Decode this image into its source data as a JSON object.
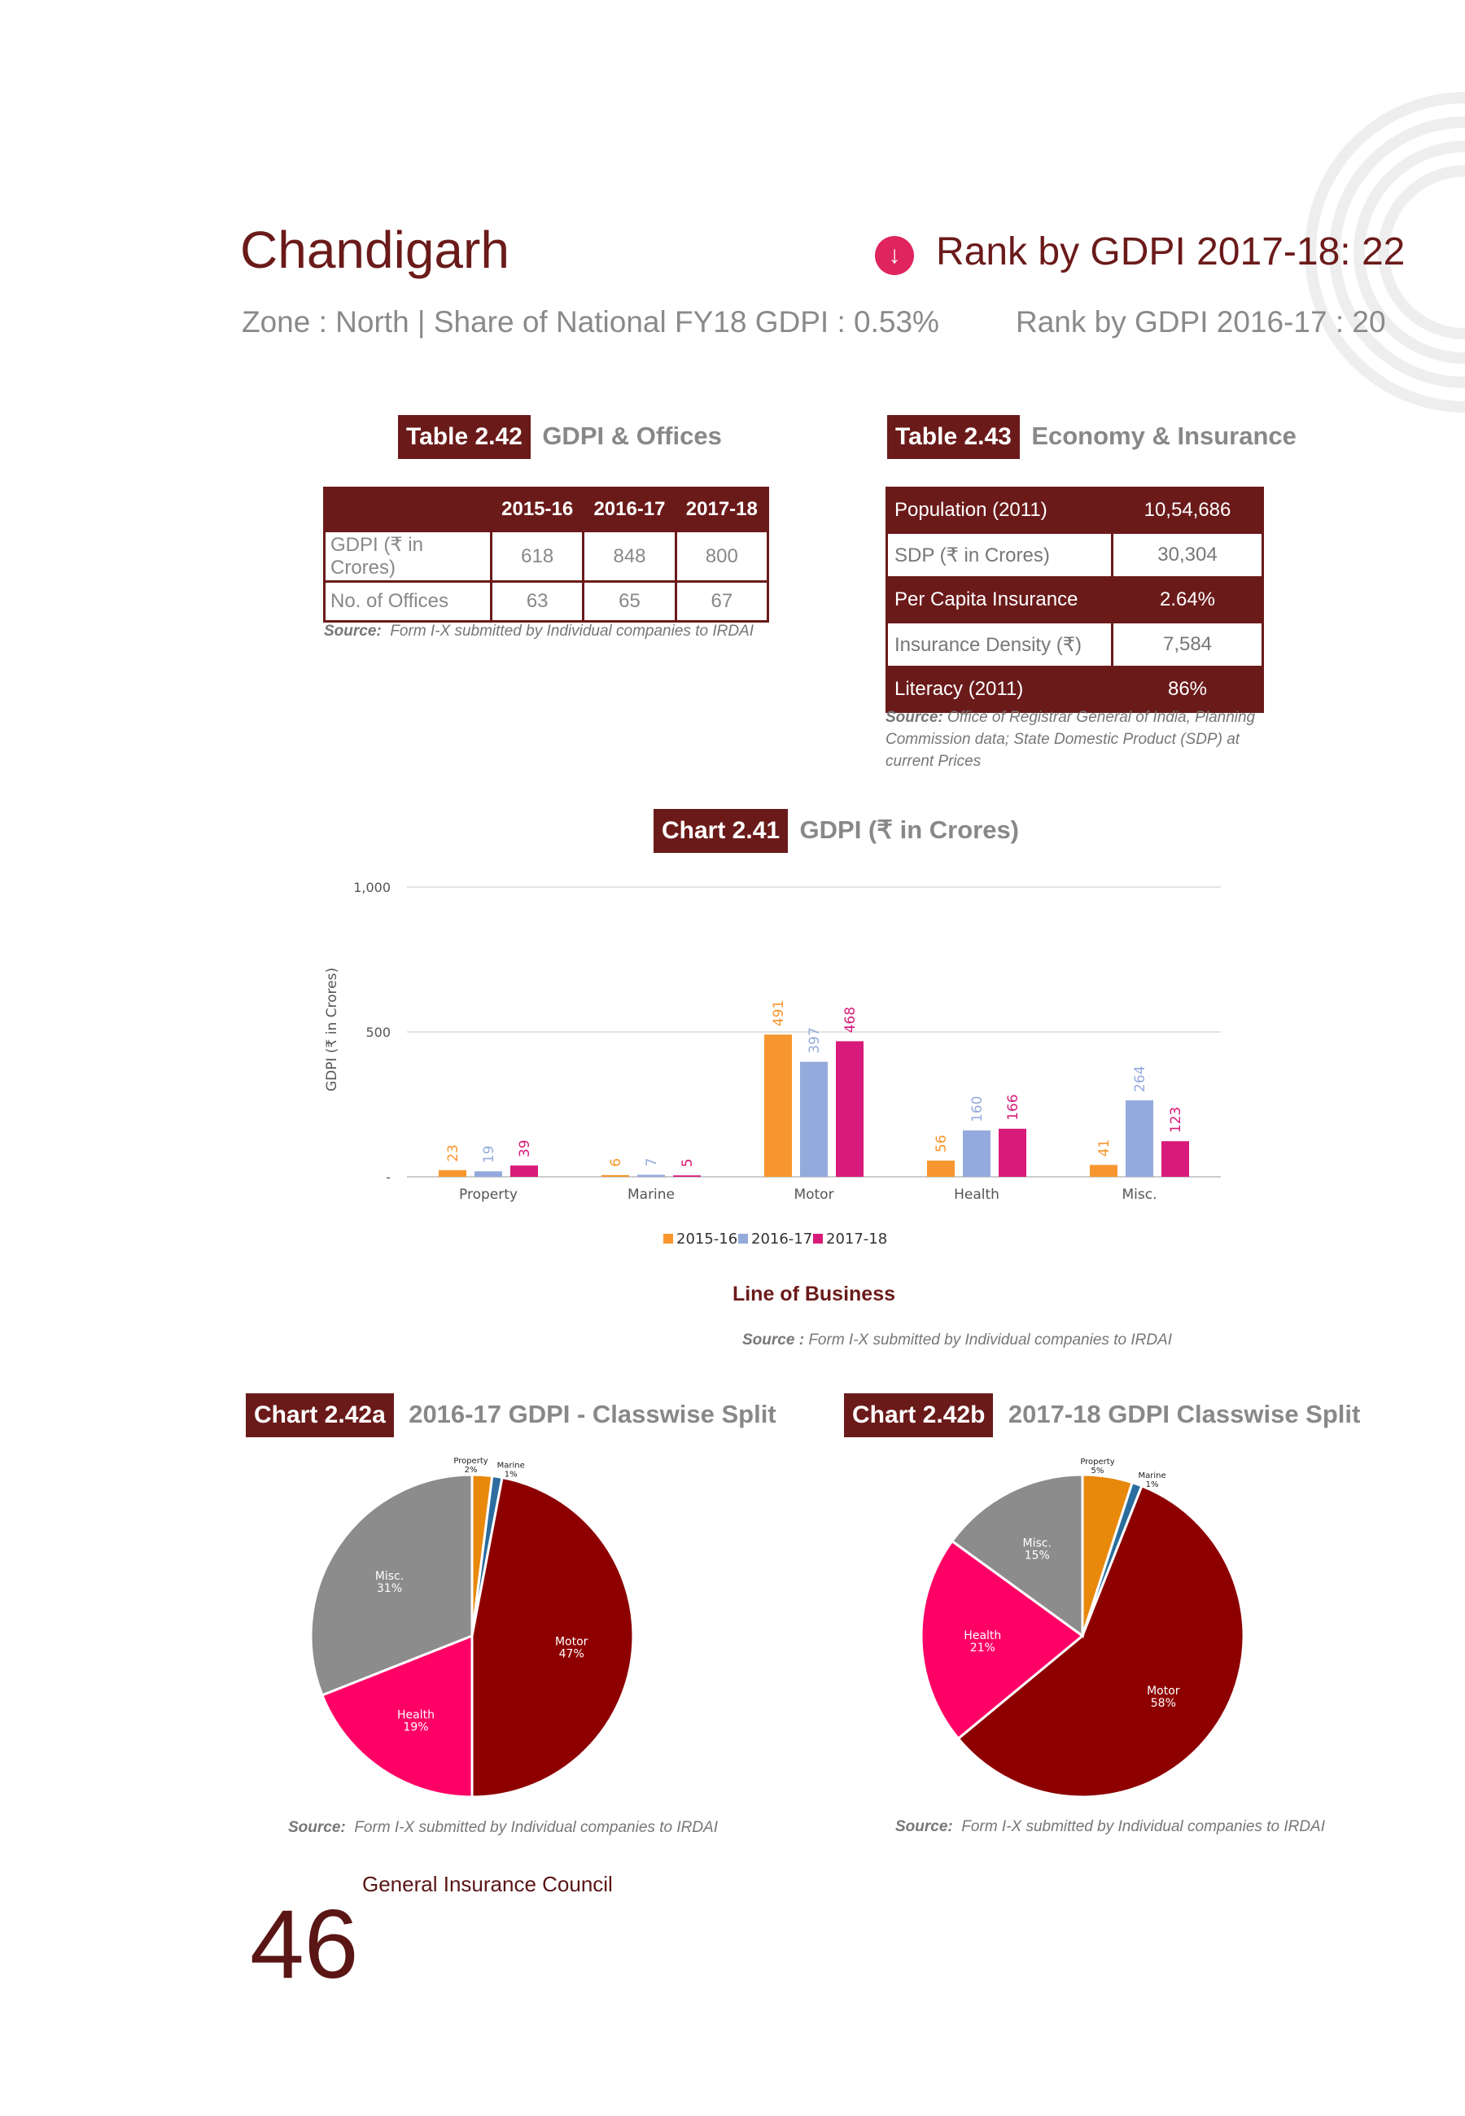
{
  "header": {
    "state": "Chandigarh",
    "subtitle": "Zone : North | Share of National FY18 GDPI : 0.53%",
    "rank_current": "Rank by GDPI 2017-18: 22",
    "rank_previous": "Rank by GDPI 2016-17 : 20"
  },
  "table_242": {
    "tag": "Table 2.42",
    "title": "GDPI & Offices",
    "headers": [
      "",
      "2015-16",
      "2016-17",
      "2017-18"
    ],
    "rows": [
      [
        "GDPI (₹ in Crores)",
        "618",
        "848",
        "800"
      ],
      [
        "No. of Offices",
        "63",
        "65",
        "67"
      ]
    ],
    "source_label": "Source:",
    "source_text": "Form I-X submitted by Individual companies to IRDAI"
  },
  "table_243": {
    "tag": "Table 2.43",
    "title": "Economy & Insurance",
    "rows": [
      [
        "Population (2011)",
        "10,54,686"
      ],
      [
        "SDP (₹ in Crores)",
        "30,304"
      ],
      [
        "Per Capita Insurance",
        "2.64%"
      ],
      [
        "Insurance Density (₹)",
        "7,584"
      ],
      [
        "Literacy (2011)",
        "86%"
      ]
    ],
    "source_label": "Source:",
    "source_line1": "Office of Registrar General of India, Planning",
    "source_line2": "Commission data; State Domestic Product (SDP) at",
    "source_line3": "current Prices"
  },
  "chart_241": {
    "tag": "Chart 2.41",
    "title": "GDPI (₹ in Crores)",
    "source_label": "Source :",
    "source_text": "Form I-X submitted by Individual companies to IRDAI"
  },
  "chart_242a": {
    "tag": "Chart 2.42a",
    "title": "2016-17 GDPI - Classwise Split",
    "source_label": "Source:",
    "source_text": "Form I-X submitted by Individual companies to IRDAI"
  },
  "chart_242b": {
    "tag": "Chart 2.42b",
    "title": "2017-18 GDPI Classwise Split",
    "source_label": "Source:",
    "source_text": "Form I-X submitted by Individual companies to IRDAI"
  },
  "footer": {
    "page_number": "46",
    "publisher": "General Insurance Council"
  },
  "colors": {
    "maroon": "#6b1a1a",
    "s2015": "#f7962e",
    "s2016": "#94aadc",
    "s2017": "#d81b7a",
    "property": "#e8890c",
    "marine": "#2a6d9e",
    "motor": "#8e0000",
    "health": "#ff0066",
    "misc": "#8c8c8c"
  },
  "chart_data": [
    {
      "type": "bar",
      "title": "GDPI (₹ in Crores)",
      "xlabel": "Line of Business",
      "ylabel": "GDPI (₹ in Crores)",
      "categories": [
        "Property",
        "Marine",
        "Motor",
        "Health",
        "Misc."
      ],
      "yticks": [
        "-",
        "500",
        "1,000"
      ],
      "ylim": [
        0,
        1000
      ],
      "grid": true,
      "legend": "bottom",
      "series": [
        {
          "name": "2015-16",
          "values": [
            23,
            6,
            491,
            56,
            41
          ]
        },
        {
          "name": "2016-17",
          "values": [
            19,
            7,
            397,
            160,
            264
          ]
        },
        {
          "name": "2017-18",
          "values": [
            39,
            5,
            468,
            166,
            123
          ]
        }
      ]
    },
    {
      "type": "pie",
      "title": "2016-17 GDPI - Classwise Split",
      "slices": [
        {
          "label": "Property",
          "value": 2,
          "pct": "2%"
        },
        {
          "label": "Marine",
          "value": 1,
          "pct": "1%"
        },
        {
          "label": "Motor",
          "value": 47,
          "pct": "47%"
        },
        {
          "label": "Health",
          "value": 19,
          "pct": "19%"
        },
        {
          "label": "Misc.",
          "value": 31,
          "pct": "31%"
        }
      ]
    },
    {
      "type": "pie",
      "title": "2017-18 GDPI Classwise Split",
      "slices": [
        {
          "label": "Property",
          "value": 5,
          "pct": "5%"
        },
        {
          "label": "Marine",
          "value": 1,
          "pct": "1%"
        },
        {
          "label": "Motor",
          "value": 58,
          "pct": "58%"
        },
        {
          "label": "Health",
          "value": 21,
          "pct": "21%"
        },
        {
          "label": "Misc.",
          "value": 15,
          "pct": "15%"
        }
      ]
    }
  ]
}
